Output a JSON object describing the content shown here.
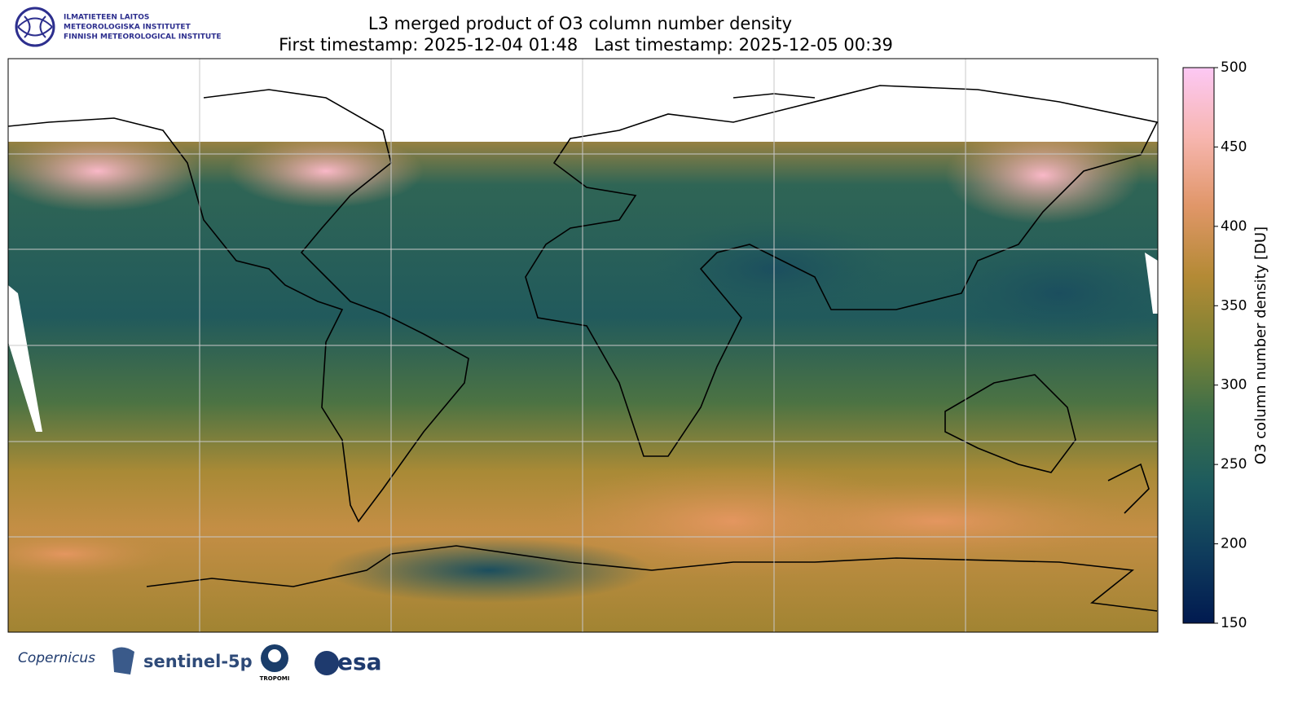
{
  "header": {
    "institute": [
      "ILMATIETEEN LAITOS",
      "METEOROLOGISKA INSTITUTET",
      "FINNISH METEOROLOGICAL INSTITUTE"
    ],
    "title": "L3 merged product of O3 column number density",
    "subtitle": "First timestamp: 2025-12-04 01:48   Last timestamp: 2025-12-05 00:39"
  },
  "colorbar": {
    "label": "O3 column number density [DU]",
    "range": [
      150,
      500
    ],
    "ticks": [
      150,
      200,
      250,
      300,
      350,
      400,
      450,
      500
    ],
    "colors": [
      "#011a50",
      "#0f3c5c",
      "#1d5b5e",
      "#3b6e4a",
      "#7d8234",
      "#b48a35",
      "#e09668",
      "#f7b6b0",
      "#fcc8f4"
    ]
  },
  "footer": {
    "logos": [
      "Copernicus",
      "sentinel-5p",
      "TROPOMI",
      "esa"
    ]
  }
}
